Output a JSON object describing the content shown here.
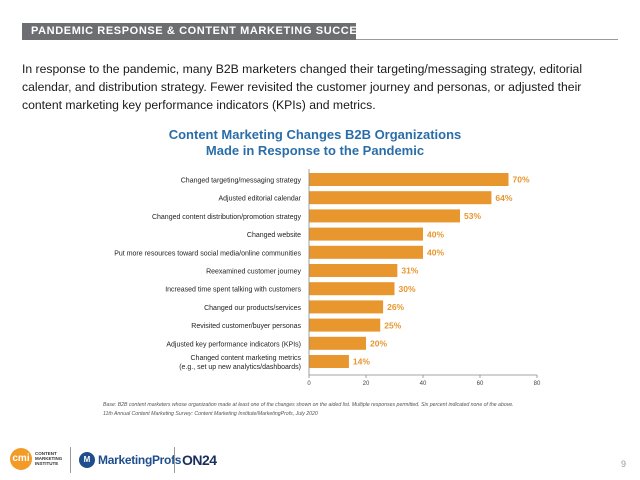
{
  "header": {
    "title": "PANDEMIC RESPONSE & CONTENT MARKETING SUCCESS"
  },
  "intro": "In response to the pandemic, many B2B marketers changed their targeting/messaging strategy, editorial calendar, and distribution strategy. Fewer revisited the customer journey and personas, or adjusted their content marketing key performance indicators (KPIs) and metrics.",
  "chart_data": {
    "type": "bar",
    "orientation": "horizontal",
    "title_lines": [
      "Content Marketing Changes B2B Organizations",
      "Made in Response to the Pandemic"
    ],
    "categories": [
      [
        "Changed targeting/messaging strategy"
      ],
      [
        "Adjusted editorial calendar"
      ],
      [
        "Changed content distribution/promotion strategy"
      ],
      [
        "Changed website"
      ],
      [
        "Put more resources toward social media/online communities"
      ],
      [
        "Reexamined customer journey"
      ],
      [
        "Increased time spent talking with customers"
      ],
      [
        "Changed our products/services"
      ],
      [
        "Revisited customer/buyer personas"
      ],
      [
        "Adjusted key performance indicators (KPIs)"
      ],
      [
        "Changed content marketing metrics",
        "(e.g., set up new analytics/dashboards)"
      ]
    ],
    "values": [
      70,
      64,
      53,
      40,
      40,
      31,
      30,
      26,
      25,
      20,
      14
    ],
    "value_labels": [
      "70%",
      "64%",
      "53%",
      "40%",
      "40%",
      "31%",
      "30%",
      "26%",
      "25%",
      "20%",
      "14%"
    ],
    "xlim": [
      0,
      80
    ],
    "xticks": [
      0,
      20,
      40,
      60,
      80
    ],
    "bar_color": "#e8962e",
    "label_color": "#e8962e",
    "grid": false,
    "legend": "none"
  },
  "footnote": {
    "line1": "Base: B2B content marketers whose organization made at least one of the changes shown on the aided list. Multiple responses permitted. Six percent indicated none of the above.",
    "line2": "11th Annual Content Marketing Survey: Content Marketing Institute/MarketingProfs, July 2020"
  },
  "logos": {
    "cmi_mark": "cmi",
    "cmi_text_lines": [
      "CONTENT",
      "MARKETING",
      "INSTITUTE"
    ],
    "marketingprofs_mark": "M",
    "marketingprofs": "MarketingProfs",
    "on24": "ON24"
  },
  "page_number": "9",
  "colors": {
    "accent": "#e8962e",
    "title_blue": "#2a6ea9",
    "header_gray": "#6d6e71"
  }
}
